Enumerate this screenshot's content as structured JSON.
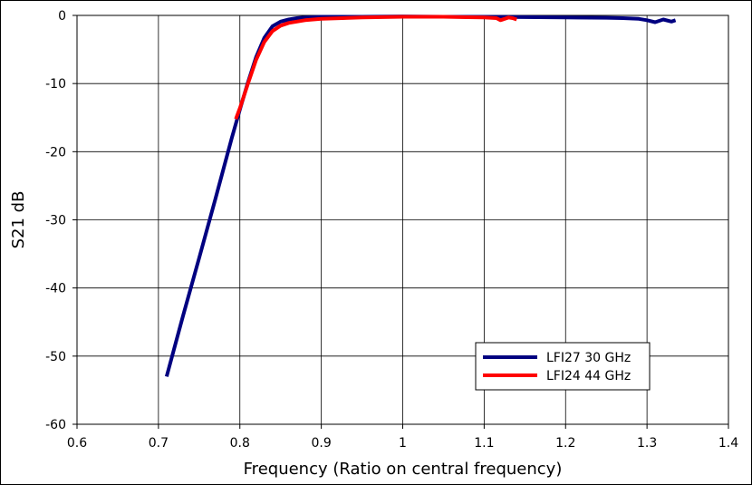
{
  "chart_data": {
    "type": "line",
    "title": "",
    "xlabel": "Frequency (Ratio on central frequency)",
    "ylabel": "S21 dB",
    "xlim": [
      0.6,
      1.4
    ],
    "ylim": [
      -60,
      0
    ],
    "xticks": [
      "0.6",
      "0.7",
      "0.8",
      "0.9",
      "1",
      "1.1",
      "1.2",
      "1.3",
      "1.4"
    ],
    "yticks": [
      "0",
      "-10",
      "-20",
      "-30",
      "-40",
      "-50",
      "-60"
    ],
    "grid": true,
    "legend_position": "bottom-right",
    "series": [
      {
        "name": "LFI27 30 GHz",
        "color": "#000080",
        "x": [
          0.71,
          0.73,
          0.75,
          0.77,
          0.79,
          0.8,
          0.81,
          0.82,
          0.83,
          0.84,
          0.85,
          0.86,
          0.87,
          0.88,
          0.9,
          0.95,
          1.0,
          1.05,
          1.1,
          1.15,
          1.2,
          1.25,
          1.27,
          1.29,
          1.3,
          1.31,
          1.32,
          1.33,
          1.335
        ],
        "y": [
          -53.0,
          -44.2,
          -35.6,
          -26.9,
          -18.0,
          -13.8,
          -9.8,
          -6.1,
          -3.3,
          -1.6,
          -0.9,
          -0.6,
          -0.4,
          -0.3,
          -0.2,
          -0.2,
          -0.15,
          -0.2,
          -0.2,
          -0.25,
          -0.3,
          -0.35,
          -0.4,
          -0.5,
          -0.7,
          -1.0,
          -0.6,
          -0.9,
          -0.7
        ]
      },
      {
        "name": "LFI24 44 GHz",
        "color": "#ff0000",
        "x": [
          0.795,
          0.8,
          0.81,
          0.82,
          0.83,
          0.84,
          0.85,
          0.86,
          0.87,
          0.88,
          0.9,
          0.95,
          1.0,
          1.05,
          1.1,
          1.115,
          1.12,
          1.13,
          1.135,
          1.14
        ],
        "y": [
          -15.2,
          -13.6,
          -10.0,
          -6.5,
          -3.9,
          -2.3,
          -1.5,
          -1.1,
          -0.9,
          -0.7,
          -0.5,
          -0.3,
          -0.2,
          -0.2,
          -0.3,
          -0.4,
          -0.7,
          -0.3,
          -0.4,
          -0.6
        ]
      }
    ]
  }
}
